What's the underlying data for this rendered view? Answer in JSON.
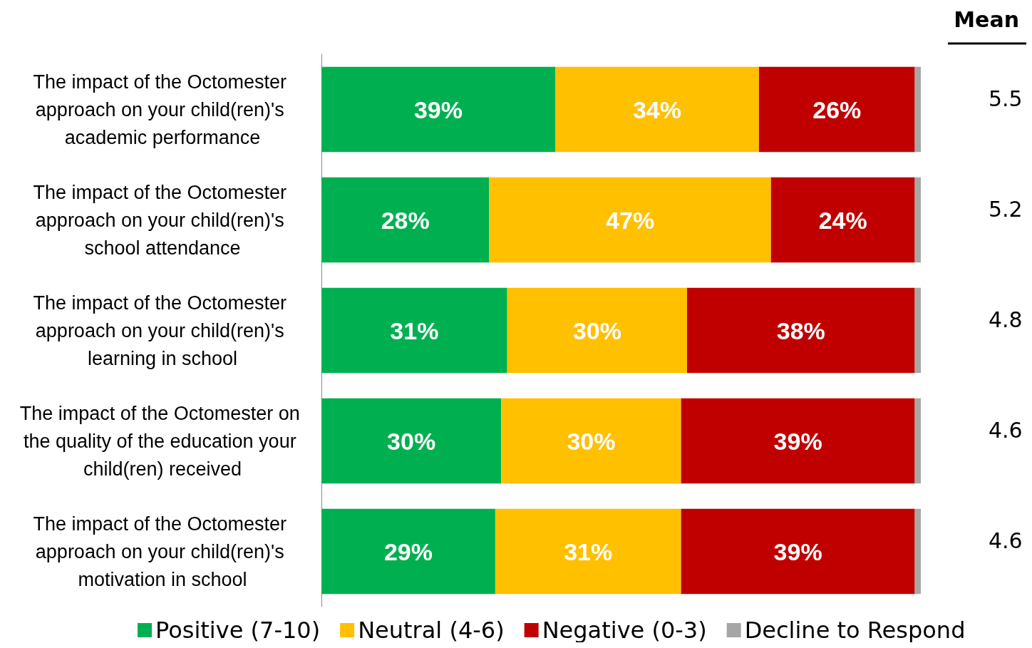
{
  "chart_data": {
    "type": "bar",
    "orientation": "horizontal",
    "stacked": true,
    "categories": [
      "The impact of the Octomester approach on your child(ren)'s academic performance",
      "The impact of the Octomester approach on your child(ren)'s school attendance",
      "The impact of the Octomester approach on your child(ren)'s learning in school",
      "The impact of the Octomester on the quality of the education your child(ren) received",
      "The impact of the Octomester approach on your child(ren)'s motivation in school"
    ],
    "series": [
      {
        "name": "Positive (7-10)",
        "color": "#00b050",
        "values": [
          39,
          28,
          31,
          30,
          29
        ],
        "value_labels": [
          "39%",
          "28%",
          "31%",
          "30%",
          "29%"
        ]
      },
      {
        "name": "Neutral (4-6)",
        "color": "#ffc000",
        "values": [
          34,
          47,
          30,
          30,
          31
        ],
        "value_labels": [
          "34%",
          "47%",
          "30%",
          "30%",
          "31%"
        ]
      },
      {
        "name": "Negative (0-3)",
        "color": "#c00000",
        "values": [
          26,
          24,
          38,
          39,
          39
        ],
        "value_labels": [
          "26%",
          "24%",
          "38%",
          "39%",
          "39%"
        ]
      },
      {
        "name": "Decline to Respond",
        "color": "#a6a6a6",
        "values": [
          1,
          1,
          1,
          1,
          1
        ],
        "value_labels": [
          null,
          null,
          null,
          null,
          null
        ]
      }
    ],
    "annotations": [
      "Mean",
      "5.5",
      "5.2",
      "4.8",
      "4.6",
      "4.6"
    ],
    "legend": "bottom"
  }
}
